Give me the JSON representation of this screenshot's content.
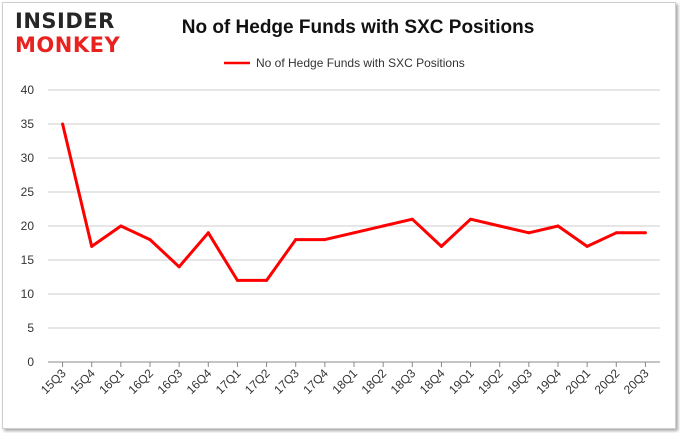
{
  "logo": {
    "line1": "INSIDER",
    "line2": "MONKEY"
  },
  "colors": {
    "series": "#ff0000",
    "grid": "#cccccc",
    "axis": "#888888",
    "logo_dark": "#262626",
    "logo_red": "#e8231f"
  },
  "chart_data": {
    "type": "line",
    "title": "No of Hedge Funds with SXC Positions",
    "xlabel": "",
    "ylabel": "",
    "ylim": [
      0,
      40
    ],
    "yticks": [
      0,
      5,
      10,
      15,
      20,
      25,
      30,
      35,
      40
    ],
    "grid": "horizontal",
    "legend": "top-center",
    "categories": [
      "15Q3",
      "15Q4",
      "16Q1",
      "16Q2",
      "16Q3",
      "16Q4",
      "17Q1",
      "17Q2",
      "17Q3",
      "17Q4",
      "18Q1",
      "18Q2",
      "18Q3",
      "18Q4",
      "19Q1",
      "19Q2",
      "19Q3",
      "19Q4",
      "20Q1",
      "20Q2",
      "20Q3"
    ],
    "series": [
      {
        "name": "No of Hedge Funds with SXC Positions",
        "color": "#ff0000",
        "values": [
          35,
          17,
          20,
          18,
          14,
          19,
          12,
          12,
          18,
          18,
          19,
          20,
          21,
          17,
          21,
          20,
          19,
          20,
          17,
          19,
          19
        ]
      }
    ]
  }
}
